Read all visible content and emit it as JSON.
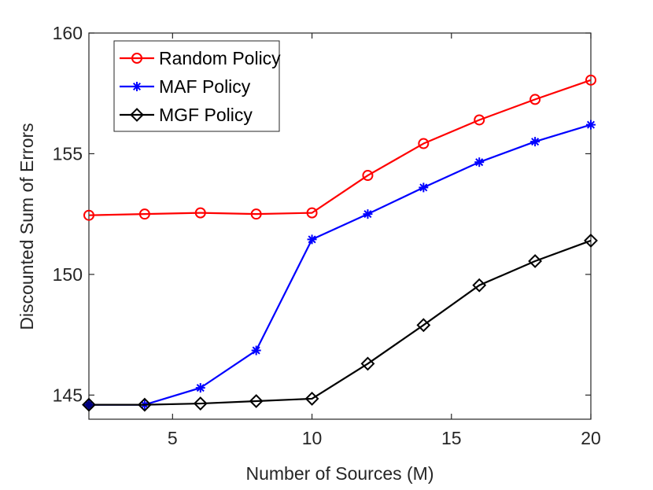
{
  "chart_data": {
    "type": "line",
    "title": "",
    "xlabel": "Number of Sources (M)",
    "ylabel": "Discounted Sum of Errors",
    "xlim": [
      2,
      20
    ],
    "ylim": [
      144,
      160
    ],
    "xticks": [
      5,
      10,
      15,
      20
    ],
    "yticks": [
      145,
      150,
      155,
      160
    ],
    "grid": false,
    "legend_position": "top-left",
    "x": [
      2,
      4,
      6,
      8,
      10,
      12,
      14,
      16,
      18,
      20
    ],
    "series": [
      {
        "name": "Random Policy",
        "color": "#ff0000",
        "marker": "circle",
        "values": [
          152.45,
          152.5,
          152.55,
          152.5,
          152.55,
          154.1,
          155.42,
          156.4,
          157.25,
          158.05
        ]
      },
      {
        "name": "MAF Policy",
        "color": "#0000ff",
        "marker": "asterisk",
        "values": [
          144.6,
          144.6,
          145.3,
          146.85,
          151.45,
          152.5,
          153.6,
          154.65,
          155.5,
          156.2
        ]
      },
      {
        "name": "MGF Policy",
        "color": "#000000",
        "marker": "diamond",
        "values": [
          144.6,
          144.6,
          144.65,
          144.75,
          144.85,
          146.3,
          147.9,
          149.55,
          150.55,
          151.4
        ]
      }
    ]
  }
}
